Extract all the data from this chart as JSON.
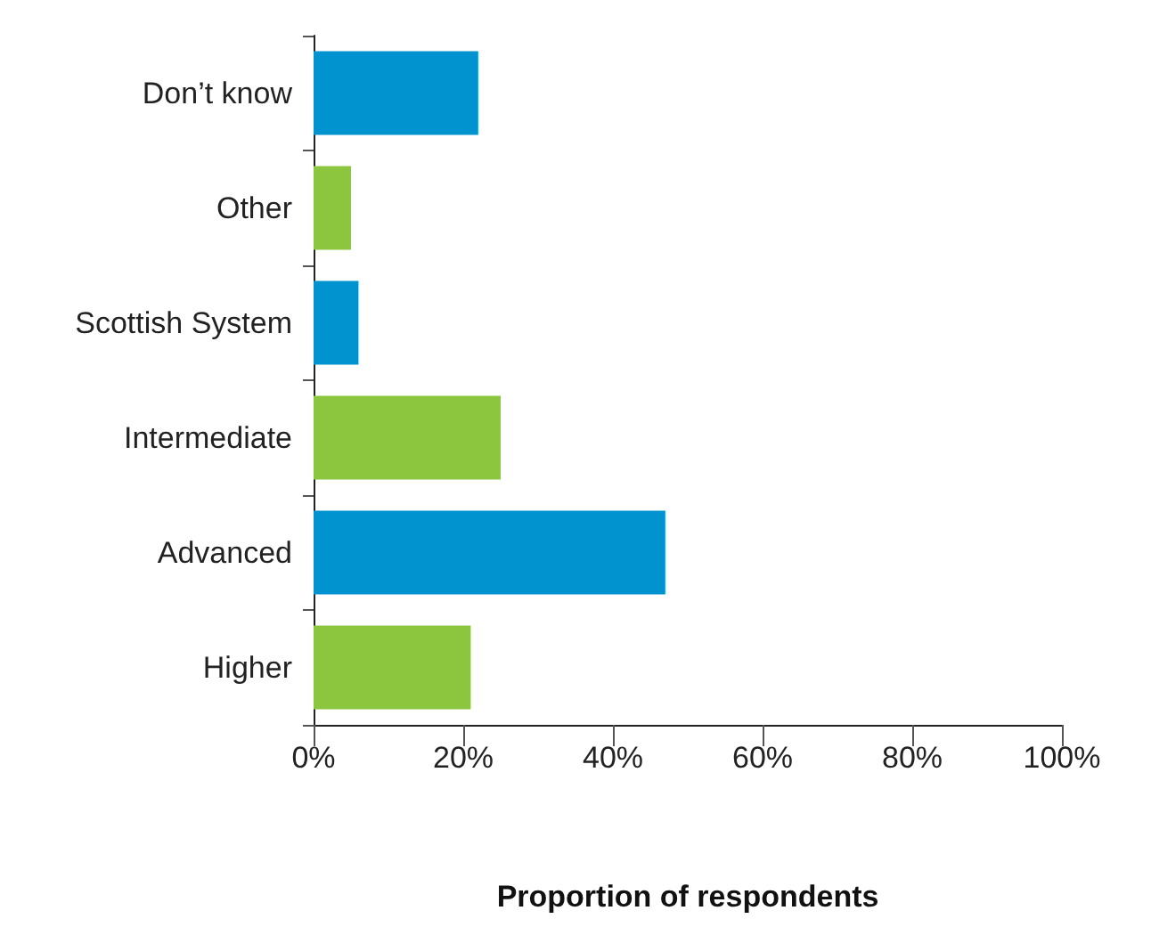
{
  "chart_data": {
    "type": "bar",
    "orientation": "horizontal",
    "xlabel": "Proportion of respondents",
    "categories": [
      "Don’t know",
      "Other",
      "Scottish System",
      "Intermediate",
      "Advanced",
      "Higher"
    ],
    "values": [
      22,
      5,
      6,
      25,
      47,
      21
    ],
    "colors": [
      "#0093d0",
      "#8cc63f",
      "#0093d0",
      "#8cc63f",
      "#0093d0",
      "#8cc63f"
    ],
    "xlim": [
      0,
      100
    ],
    "xticks": [
      {
        "value": 0,
        "label": "0%"
      },
      {
        "value": 20,
        "label": "20%"
      },
      {
        "value": 40,
        "label": "40%"
      },
      {
        "value": 60,
        "label": "60%"
      },
      {
        "value": 80,
        "label": "80%"
      },
      {
        "value": 100,
        "label": "100%"
      }
    ],
    "grid": false
  }
}
